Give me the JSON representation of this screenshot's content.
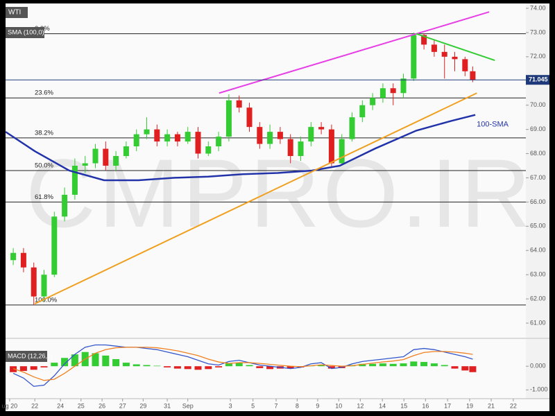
{
  "chart_data": [
    {
      "type": "candlestick",
      "title": "WTI",
      "subtitle": "SMA (100,0)",
      "watermark": "CMPRO.IR",
      "xlim": [
        0,
        101.35
      ],
      "ylim": [
        60.4,
        74.2
      ],
      "xticks": [
        {
          "value": 0.8,
          "label": "ug 20"
        },
        {
          "value": 5.7,
          "label": "22"
        },
        {
          "value": 10.7,
          "label": "24"
        },
        {
          "value": 14.7,
          "label": "25"
        },
        {
          "value": 18.8,
          "label": "26"
        },
        {
          "value": 22.8,
          "label": "27"
        },
        {
          "value": 26.8,
          "label": "29"
        },
        {
          "value": 31.5,
          "label": "31"
        },
        {
          "value": 35.5,
          "label": "Sep"
        },
        {
          "value": 43.8,
          "label": "3"
        },
        {
          "value": 48.2,
          "label": "5"
        },
        {
          "value": 52.7,
          "label": "7"
        },
        {
          "value": 56.8,
          "label": "8"
        },
        {
          "value": 60.8,
          "label": "9"
        },
        {
          "value": 64.9,
          "label": "10"
        },
        {
          "value": 69.1,
          "label": "12"
        },
        {
          "value": 73.4,
          "label": "14"
        },
        {
          "value": 77.6,
          "label": "15"
        },
        {
          "value": 81.8,
          "label": "16"
        },
        {
          "value": 86.1,
          "label": "17"
        },
        {
          "value": 90.4,
          "label": "19"
        },
        {
          "value": 94.6,
          "label": "21"
        },
        {
          "value": 98.9,
          "label": "22"
        }
      ],
      "yticks": [
        {
          "value": 61,
          "label": "61.00"
        },
        {
          "value": 62,
          "label": "62.00"
        },
        {
          "value": 63,
          "label": "63.00"
        },
        {
          "value": 64,
          "label": "64.00"
        },
        {
          "value": 65,
          "label": "65.00"
        },
        {
          "value": 66,
          "label": "66.00"
        },
        {
          "value": 67,
          "label": "67.00"
        },
        {
          "value": 68,
          "label": "68.00"
        },
        {
          "value": 69,
          "label": "69.00"
        },
        {
          "value": 70,
          "label": "70.00"
        },
        {
          "value": 71,
          "label": "71.00"
        },
        {
          "value": 72,
          "label": "72.00"
        },
        {
          "value": 73,
          "label": "73.00"
        },
        {
          "value": 74,
          "label": "74.00"
        }
      ],
      "up_color": "#33cc33",
      "down_color": "#e02020",
      "candles": {
        "x": [
          1.5,
          3.5,
          5.5,
          7.5,
          9.5,
          11.5,
          13.5,
          15.5,
          17.5,
          19.5,
          21.5,
          23.5,
          25.5,
          27.5,
          29.5,
          31.5,
          33.5,
          35.5,
          37.5,
          39.5,
          41.5,
          43.5,
          45.5,
          47.5,
          49.5,
          51.5,
          53.5,
          55.5,
          57.5,
          59.5,
          61.5,
          63.5,
          65.5,
          67.5,
          69.5,
          71.5,
          73.5,
          75.5,
          77.5,
          79.5,
          81.5,
          83.5,
          85.5,
          87.5,
          89.5,
          91
        ],
        "open": [
          63.6,
          63.9,
          63.3,
          62.1,
          63.0,
          65.4,
          66.3,
          67.5,
          67.6,
          68.2,
          67.5,
          67.9,
          68.3,
          68.8,
          69.0,
          68.5,
          68.8,
          68.5,
          68.9,
          68.0,
          68.3,
          68.7,
          70.2,
          69.9,
          69.1,
          68.4,
          68.9,
          68.6,
          67.9,
          68.5,
          69.1,
          69.0,
          67.6,
          68.6,
          69.5,
          70.0,
          70.3,
          70.7,
          70.5,
          71.1,
          72.9,
          72.5,
          72.2,
          72.0,
          71.9,
          71.4
        ],
        "high": [
          64.1,
          64.1,
          63.5,
          63.2,
          65.6,
          66.6,
          67.8,
          67.9,
          68.4,
          68.5,
          68.1,
          68.5,
          69.0,
          69.5,
          69.2,
          69.0,
          68.9,
          69.1,
          69.1,
          68.5,
          68.9,
          70.45,
          70.4,
          70.1,
          69.3,
          69.2,
          69.1,
          68.8,
          68.7,
          69.3,
          69.3,
          69.2,
          68.8,
          69.7,
          70.2,
          70.5,
          70.9,
          70.9,
          71.3,
          73.0,
          72.95,
          72.7,
          72.5,
          72.2,
          72.0,
          71.6
        ],
        "low": [
          63.4,
          63.1,
          61.75,
          61.9,
          62.9,
          65.2,
          66.1,
          67.2,
          67.4,
          67.3,
          67.3,
          67.8,
          68.1,
          68.6,
          68.3,
          68.3,
          68.3,
          68.4,
          67.8,
          67.9,
          68.1,
          68.5,
          69.7,
          68.9,
          68.2,
          68.2,
          68.4,
          67.6,
          67.7,
          68.3,
          68.8,
          67.4,
          67.5,
          68.5,
          69.3,
          69.8,
          70.1,
          70.0,
          70.3,
          71.0,
          72.3,
          72.0,
          71.1,
          71.4,
          71.2,
          70.95
        ],
        "close": [
          63.9,
          63.3,
          62.1,
          63.0,
          65.4,
          66.3,
          67.5,
          67.6,
          68.2,
          67.5,
          67.9,
          68.3,
          68.8,
          69.0,
          68.5,
          68.8,
          68.5,
          68.9,
          68.0,
          68.3,
          68.7,
          70.2,
          69.9,
          69.1,
          68.4,
          68.9,
          68.6,
          67.9,
          68.5,
          69.1,
          69.0,
          67.6,
          68.6,
          69.5,
          70.0,
          70.3,
          70.7,
          70.5,
          71.1,
          72.9,
          72.5,
          72.2,
          72.0,
          71.9,
          71.4,
          71.05
        ]
      },
      "sma": {
        "name": "100-SMA",
        "color": "#2233aa",
        "x": [
          0,
          5.7,
          12.4,
          19.2,
          25.9,
          32.7,
          39.5,
          46.2,
          53,
          59.7,
          65.1,
          71.9,
          80,
          86.8,
          91.5
        ],
        "values": [
          68.9,
          68.1,
          67.3,
          66.9,
          66.9,
          67.0,
          67.05,
          67.15,
          67.2,
          67.3,
          67.5,
          68.2,
          68.95,
          69.35,
          69.6
        ]
      },
      "fib_levels": [
        {
          "label": "0.0%",
          "value": 72.95
        },
        {
          "label": "23.6%",
          "value": 70.3
        },
        {
          "label": "38.2%",
          "value": 68.65
        },
        {
          "label": "50.0%",
          "value": 67.3
        },
        {
          "label": "61.8%",
          "value": 66.0
        },
        {
          "label": "100.0%",
          "value": 61.75
        }
      ],
      "trendlines": [
        {
          "color": "#e83ee8",
          "x": [
            41.6,
            94.2
          ],
          "y": [
            70.5,
            73.85
          ]
        },
        {
          "color": "#33cc33",
          "x": [
            80,
            95.3
          ],
          "y": [
            72.95,
            71.85
          ]
        },
        {
          "color": "#f0a020",
          "x": [
            5.7,
            91.8
          ],
          "y": [
            61.8,
            70.5
          ]
        }
      ],
      "last_price": 71.045,
      "last_price_color": "#1f3a7a"
    },
    {
      "type": "macd",
      "title": "MACD (12,26,9)",
      "ylim": [
        -1.37,
        1.06
      ],
      "yticks": [
        {
          "value": 0,
          "label": "0.000"
        },
        {
          "value": -1,
          "label": "-1.000"
        }
      ],
      "x": [
        1.5,
        3.5,
        5.5,
        7.5,
        9.5,
        11.5,
        13.5,
        15.5,
        17.5,
        19.5,
        21.5,
        23.5,
        25.5,
        27.5,
        29.5,
        31.5,
        33.5,
        35.5,
        37.5,
        39.5,
        41.5,
        43.5,
        45.5,
        47.5,
        49.5,
        51.5,
        53.5,
        55.5,
        57.5,
        59.5,
        61.5,
        63.5,
        65.5,
        67.5,
        69.5,
        71.5,
        73.5,
        75.5,
        77.5,
        79.5,
        81.5,
        83.5,
        85.5,
        87.5,
        89.5,
        91
      ],
      "histogram": [
        -0.25,
        -0.2,
        -0.15,
        -0.05,
        0.15,
        0.35,
        0.5,
        0.6,
        0.55,
        0.45,
        0.3,
        0.15,
        0.08,
        0.05,
        0.02,
        -0.05,
        -0.1,
        -0.12,
        -0.15,
        -0.12,
        -0.05,
        0.12,
        0.15,
        0.05,
        -0.08,
        -0.12,
        -0.1,
        -0.1,
        -0.05,
        0.03,
        0.06,
        -0.1,
        -0.08,
        0.05,
        0.1,
        0.1,
        0.12,
        0.1,
        0.12,
        0.2,
        0.18,
        0.12,
        0.05,
        -0.1,
        -0.18,
        -0.25
      ],
      "series": [
        {
          "color": "#3355cc",
          "values": [
            -0.3,
            -0.5,
            -0.85,
            -0.8,
            -0.4,
            0.1,
            0.5,
            0.8,
            0.9,
            0.9,
            0.85,
            0.8,
            0.8,
            0.75,
            0.7,
            0.6,
            0.5,
            0.4,
            0.25,
            0.1,
            0.05,
            0.2,
            0.25,
            0.15,
            0.05,
            0.0,
            -0.05,
            -0.1,
            -0.05,
            0.1,
            0.15,
            -0.1,
            -0.05,
            0.1,
            0.2,
            0.25,
            0.3,
            0.35,
            0.4,
            0.7,
            0.75,
            0.7,
            0.6,
            0.5,
            0.4,
            0.3
          ]
        },
        {
          "color": "#f08020",
          "values": [
            -0.1,
            -0.25,
            -0.45,
            -0.6,
            -0.55,
            -0.3,
            0.0,
            0.3,
            0.55,
            0.7,
            0.78,
            0.8,
            0.8,
            0.8,
            0.78,
            0.72,
            0.65,
            0.55,
            0.45,
            0.3,
            0.18,
            0.12,
            0.15,
            0.15,
            0.12,
            0.08,
            0.04,
            0.0,
            -0.02,
            0.02,
            0.06,
            0.03,
            0.0,
            0.02,
            0.08,
            0.13,
            0.18,
            0.22,
            0.28,
            0.45,
            0.58,
            0.62,
            0.62,
            0.6,
            0.55,
            0.5
          ]
        }
      ],
      "up_color": "#33cc33",
      "down_color": "#e02020"
    }
  ]
}
